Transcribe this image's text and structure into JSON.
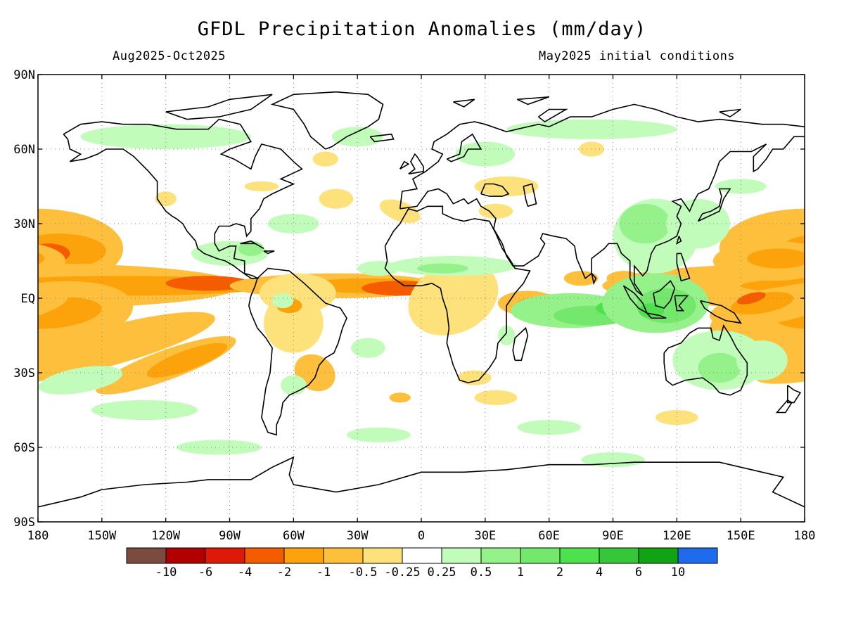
{
  "title": "GFDL Precipitation Anomalies (mm/day)",
  "subtitle_left": "Aug2025-Oct2025",
  "subtitle_right": "May2025 initial conditions",
  "lat_labels": [
    "90N",
    "60N",
    "30N",
    "EQ",
    "30S",
    "60S",
    "90S"
  ],
  "lon_labels": [
    "180",
    "150W",
    "120W",
    "90W",
    "60W",
    "30W",
    "0",
    "30E",
    "60E",
    "90E",
    "120E",
    "150E",
    "180"
  ],
  "colorbar": {
    "colors": [
      "#7b4b3f",
      "#b20000",
      "#dd1a07",
      "#f55c00",
      "#fca30c",
      "#fdbf3c",
      "#fde27c",
      "#ffffff",
      "#c2fcbb",
      "#95f28b",
      "#74e86c",
      "#4fe14d",
      "#36c63a",
      "#12a314",
      "#1e6ceb"
    ],
    "labels": [
      "-10",
      "-6",
      "-4",
      "-2",
      "-1",
      "-0.5",
      "-0.25",
      "0.25",
      "0.5",
      "1",
      "2",
      "4",
      "6",
      "10"
    ]
  },
  "style": {
    "dry_colors": [
      "#fde27c",
      "#fdbf3c",
      "#fca30c",
      "#f55c00",
      "#dd1a07"
    ],
    "wet_colors": [
      "#c2fcbb",
      "#95f28b",
      "#74e86c",
      "#4fe14d",
      "#36c63a"
    ]
  }
}
